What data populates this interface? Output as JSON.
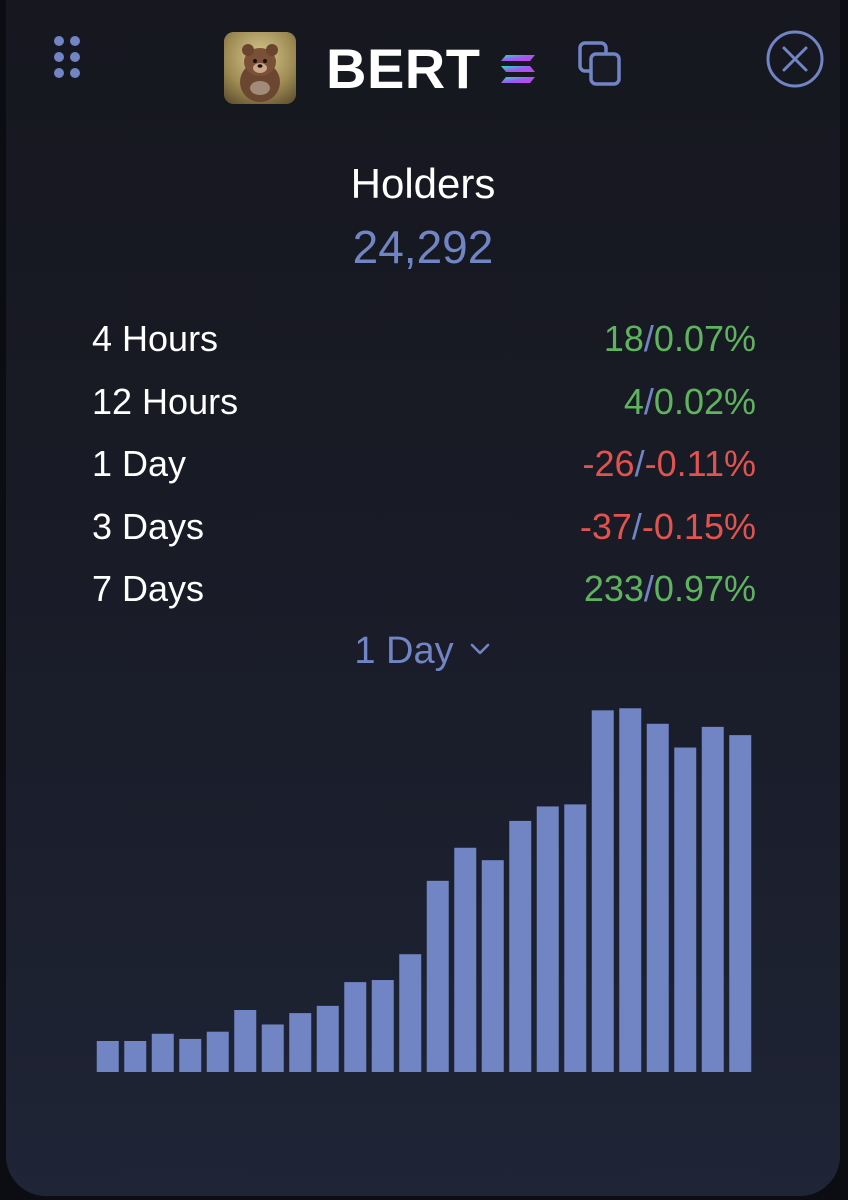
{
  "header": {
    "token_name": "BERT",
    "chain_icon": "solana-icon",
    "copy_icon": "copy-icon",
    "close_icon": "close-icon",
    "menu_icon": "drag-grip-icon"
  },
  "holders": {
    "label": "Holders",
    "count": "24,292"
  },
  "stats": [
    {
      "label": "4 Hours",
      "count": "18",
      "pct": "0.07%",
      "trend": "up"
    },
    {
      "label": "12 Hours",
      "count": "4",
      "pct": "0.02%",
      "trend": "up"
    },
    {
      "label": "1 Day",
      "count": "-26",
      "pct": "-0.11%",
      "trend": "down"
    },
    {
      "label": "3 Days",
      "count": "-37",
      "pct": "-0.15%",
      "trend": "down"
    },
    {
      "label": "7 Days",
      "count": "233",
      "pct": "0.97%",
      "trend": "up"
    }
  ],
  "period_selector": {
    "selected": "1 Day"
  },
  "colors": {
    "accent": "#7184c4",
    "positive": "#5fb35f",
    "negative": "#e0534f",
    "text": "#ffffff",
    "bar": "#7184c4"
  },
  "chart_data": {
    "type": "bar",
    "series": [
      {
        "values": [
          30,
          30,
          37,
          32,
          39,
          60,
          46,
          57,
          64,
          87,
          89,
          114,
          185,
          217,
          205,
          243,
          257,
          259,
          350,
          352,
          337,
          314,
          334,
          326
        ]
      }
    ],
    "grid": false,
    "axes_visible": false
  }
}
